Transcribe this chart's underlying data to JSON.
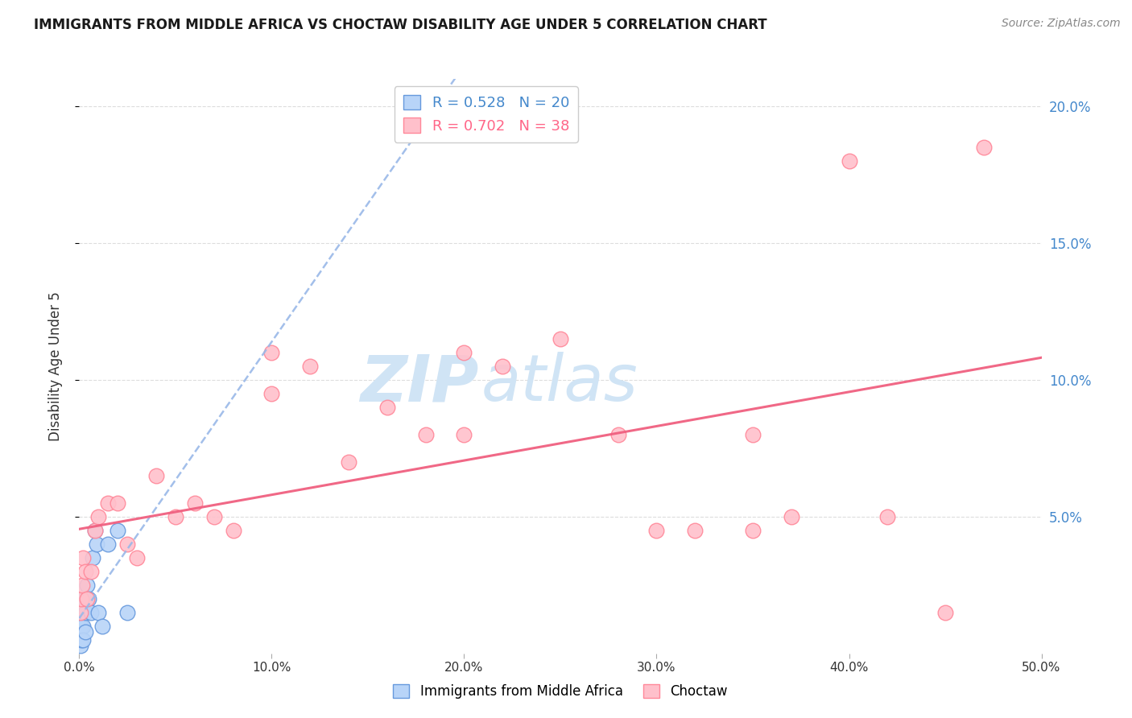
{
  "title": "IMMIGRANTS FROM MIDDLE AFRICA VS CHOCTAW DISABILITY AGE UNDER 5 CORRELATION CHART",
  "source": "Source: ZipAtlas.com",
  "ylabel": "Disability Age Under 5",
  "xlim": [
    0,
    50
  ],
  "ylim": [
    0,
    21
  ],
  "legend_blue_r": "0.528",
  "legend_blue_n": "20",
  "legend_pink_r": "0.702",
  "legend_pink_n": "38",
  "blue_scatter_x": [
    0.05,
    0.1,
    0.1,
    0.15,
    0.2,
    0.2,
    0.25,
    0.3,
    0.3,
    0.4,
    0.5,
    0.6,
    0.7,
    0.8,
    0.9,
    1.0,
    1.2,
    1.5,
    2.0,
    2.5
  ],
  "blue_scatter_y": [
    0.3,
    0.5,
    1.0,
    1.5,
    1.0,
    0.5,
    2.0,
    1.5,
    0.8,
    2.5,
    2.0,
    1.5,
    3.5,
    4.5,
    4.0,
    1.5,
    1.0,
    4.0,
    4.5,
    1.5
  ],
  "pink_scatter_x": [
    0.05,
    0.1,
    0.15,
    0.2,
    0.3,
    0.4,
    0.6,
    0.8,
    1.0,
    1.5,
    2.0,
    2.5,
    3.0,
    4.0,
    5.0,
    6.0,
    7.0,
    8.0,
    10.0,
    12.0,
    14.0,
    16.0,
    18.0,
    20.0,
    22.0,
    25.0,
    28.0,
    30.0,
    32.0,
    35.0,
    37.0,
    40.0,
    42.0,
    45.0,
    47.0,
    10.0,
    20.0,
    35.0
  ],
  "pink_scatter_y": [
    1.5,
    2.0,
    2.5,
    3.5,
    3.0,
    2.0,
    3.0,
    4.5,
    5.0,
    5.5,
    5.5,
    4.0,
    3.5,
    6.5,
    5.0,
    5.5,
    5.0,
    4.5,
    9.5,
    10.5,
    7.0,
    9.0,
    8.0,
    8.0,
    10.5,
    11.5,
    8.0,
    4.5,
    4.5,
    4.5,
    5.0,
    18.0,
    5.0,
    1.5,
    18.5,
    11.0,
    11.0,
    8.0
  ],
  "blue_color": "#b8d4f8",
  "blue_edge_color": "#6699dd",
  "pink_color": "#ffc0cb",
  "pink_edge_color": "#ff8899",
  "blue_line_color": "#99b8e8",
  "pink_line_color": "#f06080",
  "watermark_zip": "ZIP",
  "watermark_atlas": "atlas",
  "watermark_color": "#d0e4f5",
  "background_color": "#ffffff",
  "grid_color": "#dddddd",
  "ytick_vals": [
    5,
    10,
    15,
    20
  ],
  "xtick_vals": [
    0,
    10,
    20,
    30,
    40,
    50
  ]
}
